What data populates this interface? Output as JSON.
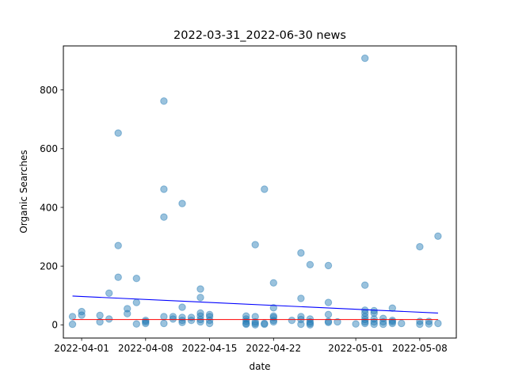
{
  "chart_data": {
    "type": "scatter",
    "title": "2022-03-31_2022-06-30 news",
    "xlabel": "date",
    "ylabel": "Organic Searches",
    "x_ticks": [
      "2022-04-01",
      "2022-04-08",
      "2022-04-15",
      "2022-04-22",
      "2022-05-01",
      "2022-05-08"
    ],
    "y_ticks": [
      0,
      200,
      400,
      600,
      800
    ],
    "xlim": [
      "2022-03-30T00:00",
      "2022-05-12T00:00"
    ],
    "ylim": [
      -45,
      950
    ],
    "grid": false,
    "colors": {
      "points": "#1f77b4",
      "trend_line": "#0000ff",
      "median_line": "#ff0000"
    },
    "points": [
      {
        "x": "2022-03-31",
        "y": 28
      },
      {
        "x": "2022-03-31",
        "y": 2
      },
      {
        "x": "2022-04-01",
        "y": 45
      },
      {
        "x": "2022-04-01",
        "y": 33
      },
      {
        "x": "2022-04-03",
        "y": 32
      },
      {
        "x": "2022-04-03",
        "y": 10
      },
      {
        "x": "2022-04-04",
        "y": 108
      },
      {
        "x": "2022-04-04",
        "y": 20
      },
      {
        "x": "2022-04-05",
        "y": 653
      },
      {
        "x": "2022-04-05",
        "y": 270
      },
      {
        "x": "2022-04-05",
        "y": 162
      },
      {
        "x": "2022-04-06",
        "y": 55
      },
      {
        "x": "2022-04-06",
        "y": 38
      },
      {
        "x": "2022-04-07",
        "y": 158
      },
      {
        "x": "2022-04-07",
        "y": 76
      },
      {
        "x": "2022-04-07",
        "y": 3
      },
      {
        "x": "2022-04-08",
        "y": 15
      },
      {
        "x": "2022-04-08",
        "y": 10
      },
      {
        "x": "2022-04-08",
        "y": 5
      },
      {
        "x": "2022-04-10",
        "y": 762
      },
      {
        "x": "2022-04-10",
        "y": 462
      },
      {
        "x": "2022-04-10",
        "y": 367
      },
      {
        "x": "2022-04-10",
        "y": 28
      },
      {
        "x": "2022-04-10",
        "y": 5
      },
      {
        "x": "2022-04-11",
        "y": 28
      },
      {
        "x": "2022-04-11",
        "y": 20
      },
      {
        "x": "2022-04-12",
        "y": 413
      },
      {
        "x": "2022-04-12",
        "y": 60
      },
      {
        "x": "2022-04-12",
        "y": 25
      },
      {
        "x": "2022-04-12",
        "y": 15
      },
      {
        "x": "2022-04-12",
        "y": 8
      },
      {
        "x": "2022-04-13",
        "y": 25
      },
      {
        "x": "2022-04-13",
        "y": 15
      },
      {
        "x": "2022-04-14",
        "y": 122
      },
      {
        "x": "2022-04-14",
        "y": 93
      },
      {
        "x": "2022-04-14",
        "y": 40
      },
      {
        "x": "2022-04-14",
        "y": 30
      },
      {
        "x": "2022-04-14",
        "y": 18
      },
      {
        "x": "2022-04-14",
        "y": 10
      },
      {
        "x": "2022-04-15",
        "y": 35
      },
      {
        "x": "2022-04-15",
        "y": 28
      },
      {
        "x": "2022-04-15",
        "y": 15
      },
      {
        "x": "2022-04-15",
        "y": 5
      },
      {
        "x": "2022-04-19",
        "y": 30
      },
      {
        "x": "2022-04-19",
        "y": 20
      },
      {
        "x": "2022-04-19",
        "y": 12
      },
      {
        "x": "2022-04-19",
        "y": 5
      },
      {
        "x": "2022-04-19",
        "y": 2
      },
      {
        "x": "2022-04-20",
        "y": 273
      },
      {
        "x": "2022-04-20",
        "y": 28
      },
      {
        "x": "2022-04-20",
        "y": 10
      },
      {
        "x": "2022-04-20",
        "y": 5
      },
      {
        "x": "2022-04-20",
        "y": 0
      },
      {
        "x": "2022-04-21",
        "y": 462
      },
      {
        "x": "2022-04-21",
        "y": 5
      },
      {
        "x": "2022-04-21",
        "y": 2
      },
      {
        "x": "2022-04-22",
        "y": 143
      },
      {
        "x": "2022-04-22",
        "y": 58
      },
      {
        "x": "2022-04-22",
        "y": 30
      },
      {
        "x": "2022-04-22",
        "y": 25
      },
      {
        "x": "2022-04-22",
        "y": 15
      },
      {
        "x": "2022-04-22",
        "y": 10
      },
      {
        "x": "2022-04-24",
        "y": 15
      },
      {
        "x": "2022-04-25",
        "y": 245
      },
      {
        "x": "2022-04-25",
        "y": 90
      },
      {
        "x": "2022-04-25",
        "y": 28
      },
      {
        "x": "2022-04-25",
        "y": 18
      },
      {
        "x": "2022-04-25",
        "y": 2
      },
      {
        "x": "2022-04-26",
        "y": 205
      },
      {
        "x": "2022-04-26",
        "y": 20
      },
      {
        "x": "2022-04-26",
        "y": 10
      },
      {
        "x": "2022-04-26",
        "y": 5
      },
      {
        "x": "2022-04-26",
        "y": 0
      },
      {
        "x": "2022-04-28",
        "y": 202
      },
      {
        "x": "2022-04-28",
        "y": 76
      },
      {
        "x": "2022-04-28",
        "y": 35
      },
      {
        "x": "2022-04-28",
        "y": 12
      },
      {
        "x": "2022-04-28",
        "y": 8
      },
      {
        "x": "2022-04-29",
        "y": 10
      },
      {
        "x": "2022-05-01",
        "y": 3
      },
      {
        "x": "2022-05-02",
        "y": 908
      },
      {
        "x": "2022-05-02",
        "y": 135
      },
      {
        "x": "2022-05-02",
        "y": 50
      },
      {
        "x": "2022-05-02",
        "y": 40
      },
      {
        "x": "2022-05-02",
        "y": 28
      },
      {
        "x": "2022-05-02",
        "y": 18
      },
      {
        "x": "2022-05-02",
        "y": 10
      },
      {
        "x": "2022-05-02",
        "y": 5
      },
      {
        "x": "2022-05-03",
        "y": 48
      },
      {
        "x": "2022-05-03",
        "y": 40
      },
      {
        "x": "2022-05-03",
        "y": 20
      },
      {
        "x": "2022-05-03",
        "y": 10
      },
      {
        "x": "2022-05-03",
        "y": 2
      },
      {
        "x": "2022-05-04",
        "y": 22
      },
      {
        "x": "2022-05-04",
        "y": 10
      },
      {
        "x": "2022-05-04",
        "y": 2
      },
      {
        "x": "2022-05-05",
        "y": 57
      },
      {
        "x": "2022-05-05",
        "y": 15
      },
      {
        "x": "2022-05-05",
        "y": 10
      },
      {
        "x": "2022-05-05",
        "y": 5
      },
      {
        "x": "2022-05-06",
        "y": 5
      },
      {
        "x": "2022-05-08",
        "y": 266
      },
      {
        "x": "2022-05-08",
        "y": 12
      },
      {
        "x": "2022-05-08",
        "y": 2
      },
      {
        "x": "2022-05-09",
        "y": 12
      },
      {
        "x": "2022-05-09",
        "y": 3
      },
      {
        "x": "2022-05-10",
        "y": 302
      },
      {
        "x": "2022-05-10",
        "y": 5
      }
    ],
    "trend_line": {
      "start": {
        "x": "2022-03-31",
        "y": 98
      },
      "end": {
        "x": "2022-05-10",
        "y": 40
      }
    },
    "median_line": {
      "start": {
        "x": "2022-03-31",
        "y": 18
      },
      "end": {
        "x": "2022-05-10",
        "y": 18
      }
    }
  }
}
